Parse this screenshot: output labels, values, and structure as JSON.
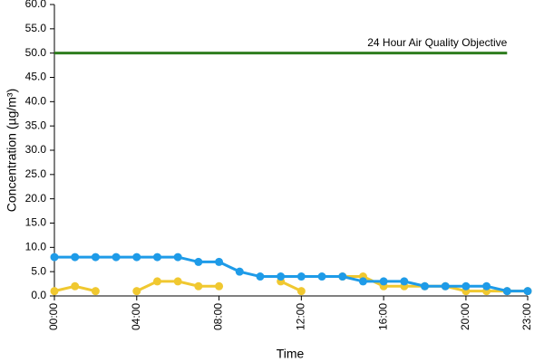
{
  "chart_data": {
    "type": "line",
    "x_label": "Time",
    "y_label": "Concentration (µg/m³)",
    "categories": [
      "00:00",
      null,
      null,
      null,
      "04:00",
      null,
      null,
      null,
      "08:00",
      null,
      null,
      null,
      "12:00",
      null,
      null,
      null,
      "16:00",
      null,
      null,
      null,
      "20:00",
      null,
      null,
      "23:00"
    ],
    "series": [
      {
        "name": "24 Hour Air Quality Objective",
        "color": "#2e7d1e",
        "markers": false,
        "values": [
          50,
          50,
          50,
          50,
          50,
          50,
          50,
          50,
          50,
          50,
          50,
          50,
          50,
          50,
          50,
          50,
          50,
          50,
          50,
          50,
          50,
          50,
          50,
          null
        ]
      },
      {
        "name": null,
        "color": "#f0c830",
        "markers": true,
        "values": [
          1,
          2,
          1,
          null,
          1,
          3,
          3,
          2,
          2,
          null,
          null,
          3,
          1,
          null,
          4,
          4,
          2,
          2,
          2,
          2,
          1,
          1,
          1,
          1
        ]
      },
      {
        "name": null,
        "color": "#1e9be8",
        "markers": true,
        "values": [
          8,
          8,
          8,
          8,
          8,
          8,
          8,
          7,
          7,
          5,
          4,
          4,
          4,
          4,
          4,
          3,
          3,
          3,
          2,
          2,
          2,
          2,
          1,
          1
        ]
      }
    ],
    "ylim": [
      0,
      60
    ],
    "yticks": [
      {
        "value": 0,
        "label": "0.0"
      },
      {
        "value": 5,
        "label": "5.0"
      },
      {
        "value": 10,
        "label": "10.0"
      },
      {
        "value": 15,
        "label": "15.0"
      },
      {
        "value": 20,
        "label": "20.0"
      },
      {
        "value": 25,
        "label": "25.0"
      },
      {
        "value": 30,
        "label": "30.0"
      },
      {
        "value": 35,
        "label": "35.0"
      },
      {
        "value": 40,
        "label": "40.0"
      },
      {
        "value": 45,
        "label": "45.0"
      },
      {
        "value": 50,
        "label": "50.0"
      },
      {
        "value": 55,
        "label": "55.0"
      },
      {
        "value": 60,
        "label": "60.0"
      }
    ],
    "grid": false
  }
}
